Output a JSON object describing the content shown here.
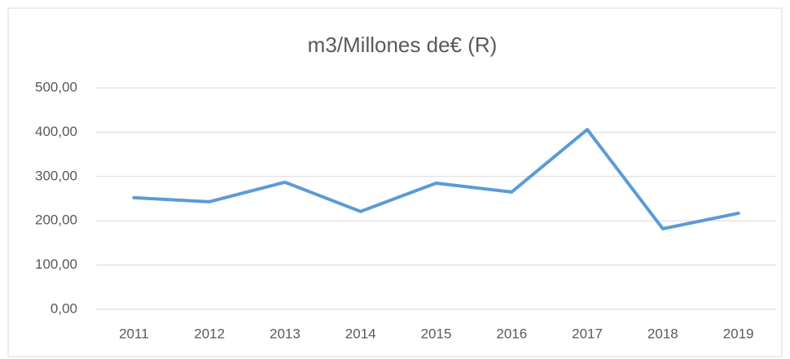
{
  "chart_data": {
    "type": "line",
    "title": "m3/Millones de€ (R)",
    "categories": [
      "2011",
      "2012",
      "2013",
      "2014",
      "2015",
      "2016",
      "2017",
      "2018",
      "2019"
    ],
    "series": [
      {
        "name": "m3/Millones de€ (R)",
        "color": "#5b9bd5",
        "values": [
          252,
          243,
          287,
          221,
          285,
          265,
          406,
          182,
          217
        ]
      }
    ],
    "ylim": [
      0,
      500
    ],
    "yticks": [
      {
        "value": 0,
        "label": "0,00"
      },
      {
        "value": 100,
        "label": "100,00"
      },
      {
        "value": 200,
        "label": "200,00"
      },
      {
        "value": 300,
        "label": "300,00"
      },
      {
        "value": 400,
        "label": "400,00"
      },
      {
        "value": 500,
        "label": "500,00"
      }
    ],
    "grid": true,
    "legend": false
  }
}
